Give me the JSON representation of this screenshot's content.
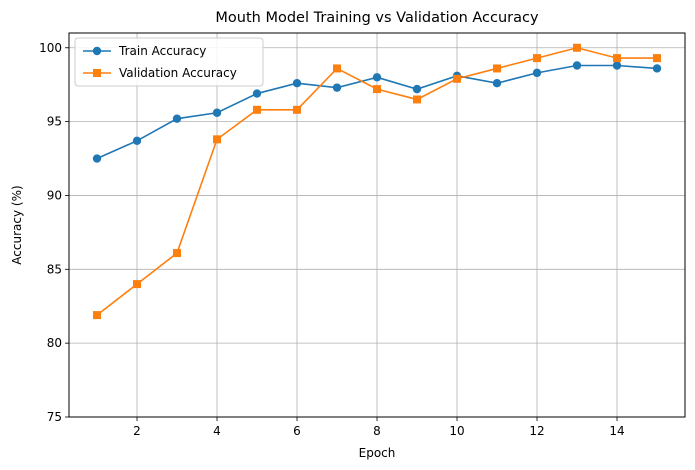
{
  "chart_data": {
    "type": "line",
    "title": "Mouth Model Training vs Validation Accuracy",
    "xlabel": "Epoch",
    "ylabel": "Accuracy (%)",
    "xlim": [
      0.3,
      15.7
    ],
    "ylim": [
      75,
      101
    ],
    "xticks": [
      2,
      4,
      6,
      8,
      10,
      12,
      14
    ],
    "yticks": [
      75,
      80,
      85,
      90,
      95,
      100
    ],
    "grid": true,
    "legend_position": "top-left",
    "x": [
      1,
      2,
      3,
      4,
      5,
      6,
      7,
      8,
      9,
      10,
      11,
      12,
      13,
      14,
      15
    ],
    "series": [
      {
        "name": "Train Accuracy",
        "color": "#1f77b4",
        "marker": "circle",
        "values": [
          92.5,
          93.7,
          95.2,
          95.6,
          96.9,
          97.6,
          97.3,
          98.0,
          97.2,
          98.1,
          97.6,
          98.3,
          98.8,
          98.8,
          98.6
        ]
      },
      {
        "name": "Validation Accuracy",
        "color": "#ff7f0e",
        "marker": "square",
        "values": [
          81.9,
          84.0,
          86.1,
          93.8,
          95.8,
          95.8,
          98.6,
          97.2,
          96.5,
          97.9,
          98.6,
          99.3,
          100.0,
          99.3,
          99.3
        ]
      }
    ]
  }
}
